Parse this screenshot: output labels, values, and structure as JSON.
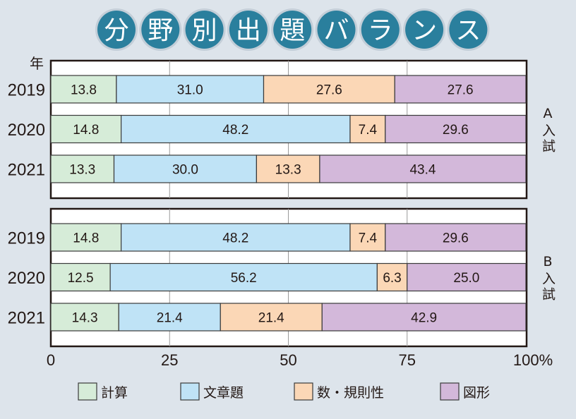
{
  "chart_data": {
    "type": "bar",
    "stacked": true,
    "orientation": "horizontal",
    "title": "分野別出題バランス",
    "year_axis_label": "年",
    "xlim": [
      0,
      100
    ],
    "x_ticks": [
      "0",
      "25",
      "50",
      "75",
      "100%"
    ],
    "grid": true,
    "legend_placement": "bottom",
    "series": [
      {
        "name": "計算",
        "color": "#d6ecd8"
      },
      {
        "name": "文章題",
        "color": "#bfe3f6"
      },
      {
        "name": "数・規則性",
        "color": "#fbd7b6"
      },
      {
        "name": "図形",
        "color": "#d3b8da"
      }
    ],
    "panels": [
      {
        "label": "A入試",
        "label_chars": [
          "A",
          "入",
          "試"
        ],
        "rows": [
          {
            "year": "2019",
            "values": [
              13.8,
              31.0,
              27.6,
              27.6
            ],
            "labels": [
              "13.8",
              "31.0",
              "27.6",
              "27.6"
            ]
          },
          {
            "year": "2020",
            "values": [
              14.8,
              48.2,
              7.4,
              29.6
            ],
            "labels": [
              "14.8",
              "48.2",
              "7.4",
              "29.6"
            ]
          },
          {
            "year": "2021",
            "values": [
              13.3,
              30.0,
              13.3,
              43.4
            ],
            "labels": [
              "13.3",
              "30.0",
              "13.3",
              "43.4"
            ]
          }
        ]
      },
      {
        "label": "B入試",
        "label_chars": [
          "B",
          "入",
          "試"
        ],
        "rows": [
          {
            "year": "2019",
            "values": [
              14.8,
              48.2,
              7.4,
              29.6
            ],
            "labels": [
              "14.8",
              "48.2",
              "7.4",
              "29.6"
            ]
          },
          {
            "year": "2020",
            "values": [
              12.5,
              56.2,
              6.3,
              25.0
            ],
            "labels": [
              "12.5",
              "56.2",
              "6.3",
              "25.0"
            ]
          },
          {
            "year": "2021",
            "values": [
              14.3,
              21.4,
              21.4,
              42.9
            ],
            "labels": [
              "14.3",
              "21.4",
              "21.4",
              "42.9"
            ]
          }
        ]
      }
    ]
  },
  "colors": {
    "background": "#dde4eb",
    "title_circle": "#2a7f9d"
  }
}
